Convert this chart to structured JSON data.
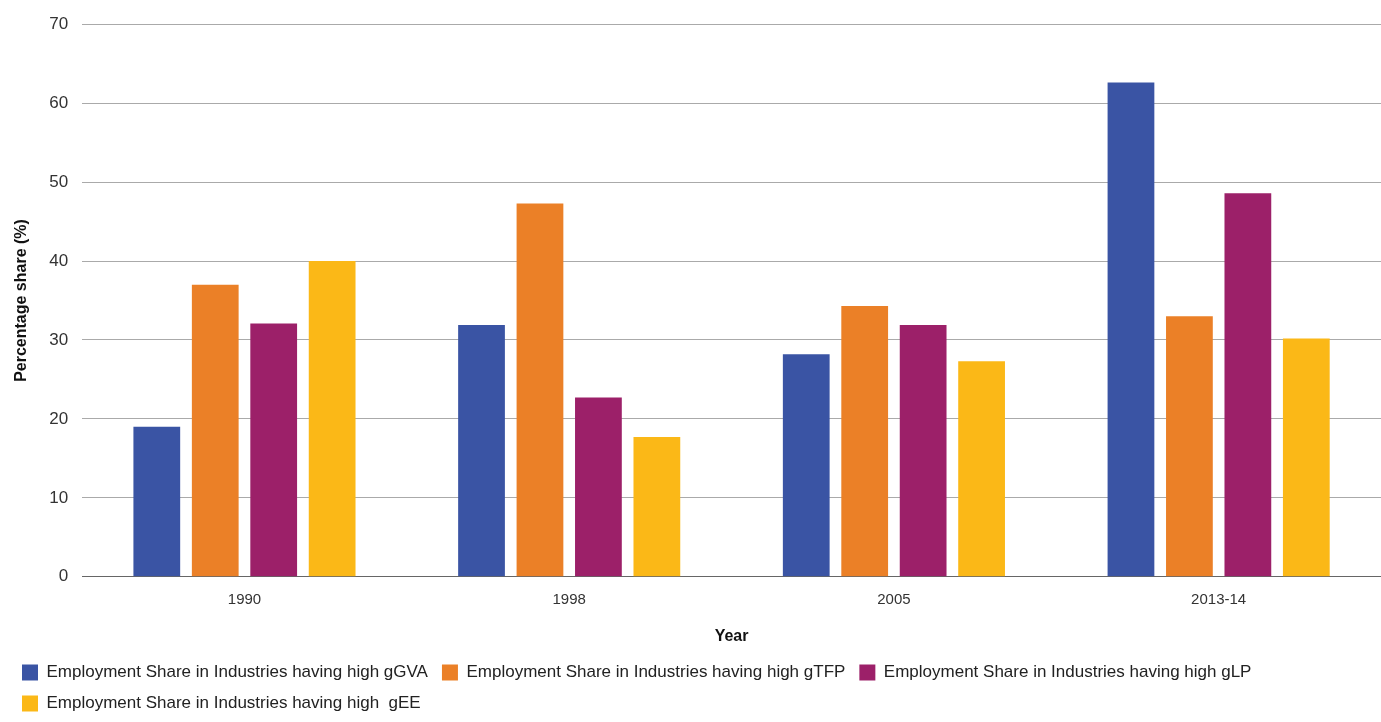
{
  "chart_data": {
    "type": "bar",
    "xlabel": "Year",
    "ylabel": "Percentage share (%)",
    "categories": [
      "1990",
      "1998",
      "2005",
      "2013-14"
    ],
    "series": [
      {
        "name": "Employment Share in Industries having high gGVA",
        "color": "#3a54a4",
        "values": [
          19.0,
          31.9,
          28.2,
          62.6
        ]
      },
      {
        "name": "Employment Share in Industries having high gTFP",
        "color": "#eb8027",
        "values": [
          37.0,
          47.3,
          34.3,
          33.0
        ]
      },
      {
        "name": "Employment Share in Industries having high gLP",
        "color": "#9c2069",
        "values": [
          32.1,
          22.7,
          31.9,
          48.6
        ]
      },
      {
        "name": "Employment Share in Industries having high  gEE",
        "color": "#fbb817",
        "values": [
          40.0,
          17.7,
          27.3,
          30.2
        ]
      }
    ],
    "ylim": [
      0,
      70
    ],
    "yticks": [
      0,
      10,
      20,
      30,
      40,
      50,
      60,
      70
    ],
    "grid": "y",
    "legend": "bottom"
  }
}
